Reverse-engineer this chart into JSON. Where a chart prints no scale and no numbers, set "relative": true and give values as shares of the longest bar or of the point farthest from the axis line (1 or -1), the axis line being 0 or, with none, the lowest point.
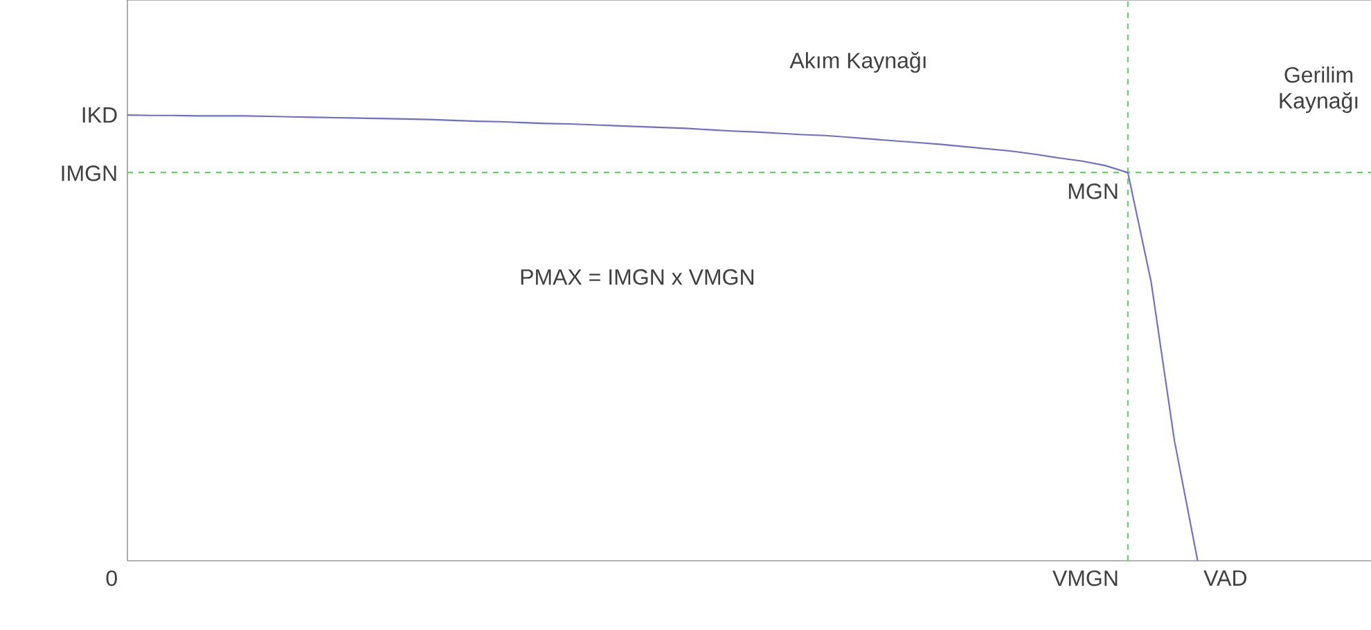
{
  "chart_data": {
    "type": "line",
    "relative": true,
    "categories": [
      null,
      null,
      null,
      null,
      null,
      null,
      null,
      null,
      null,
      null,
      null,
      null,
      null,
      null,
      null,
      null,
      null,
      null,
      null,
      null,
      null,
      null,
      null,
      null,
      null,
      null,
      null,
      null,
      null,
      null,
      null,
      null,
      null,
      null,
      null,
      null,
      null,
      null,
      null,
      null,
      null,
      null,
      null,
      null,
      null,
      null,
      null
    ],
    "series": [
      {
        "color": "#6b6bdd",
        "values": [
          1.0,
          0.999,
          0.999,
          0.998,
          0.998,
          0.998,
          0.997,
          0.996,
          0.995,
          0.994,
          0.993,
          0.992,
          0.991,
          0.99,
          0.988,
          0.986,
          0.985,
          0.983,
          0.981,
          0.98,
          0.978,
          0.976,
          0.974,
          0.972,
          0.97,
          0.967,
          0.964,
          0.962,
          0.959,
          0.956,
          0.954,
          0.95,
          0.946,
          0.942,
          0.938,
          0.934,
          0.929,
          0.924,
          0.919,
          0.912,
          0.904,
          0.897,
          0.887,
          0.871,
          0.626,
          0.27,
          0.0
        ]
      }
    ],
    "ref_lines": [
      {
        "axis": "y",
        "value": 0.871,
        "color": "#5cd65c",
        "line_style": "dashed"
      }
    ],
    "annotations": [
      "IKD",
      "IMGN",
      "0",
      "VMGN",
      "VAD",
      "MGN",
      "PMAX = IMGN x VMGN",
      "Akım Kaynağı",
      "Gerilim Kaynağı"
    ],
    "marker": "none",
    "line_style": "solid"
  }
}
